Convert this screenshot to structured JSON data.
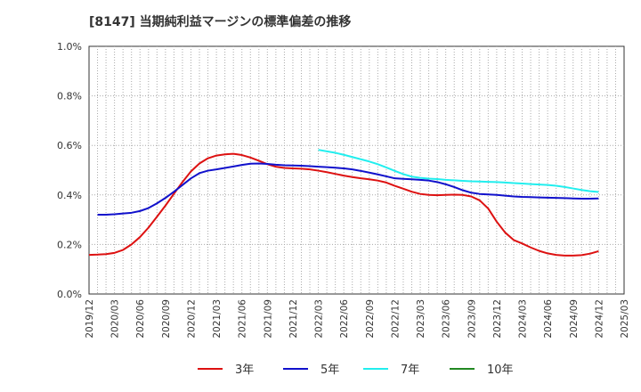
{
  "chart_data": {
    "type": "line",
    "title": "[8147]  当期純利益マージンの標準偏差の推移",
    "xlabel": "",
    "ylabel": "",
    "ylim": [
      0,
      0.01
    ],
    "yticks": [
      {
        "value": 0.0,
        "label": "0.0%"
      },
      {
        "value": 0.002,
        "label": "0.2%"
      },
      {
        "value": 0.004,
        "label": "0.4%"
      },
      {
        "value": 0.006,
        "label": "0.6%"
      },
      {
        "value": 0.008,
        "label": "0.8%"
      },
      {
        "value": 0.01,
        "label": "1.0%"
      }
    ],
    "xticks": [
      "2019/12",
      "2020/03",
      "2020/06",
      "2020/09",
      "2020/12",
      "2021/03",
      "2021/06",
      "2021/09",
      "2021/12",
      "2022/03",
      "2022/06",
      "2022/09",
      "2022/12",
      "2023/03",
      "2023/06",
      "2023/09",
      "2023/12",
      "2024/03",
      "2024/06",
      "2024/09",
      "2024/12",
      "2025/03"
    ],
    "grid": true,
    "legend_position": "bottom",
    "series": [
      {
        "name": "3年",
        "color": "#dd1111",
        "points": [
          [
            "2019/12",
            0.00158
          ],
          [
            "2020/01",
            0.00159
          ],
          [
            "2020/02",
            0.00161
          ],
          [
            "2020/03",
            0.00166
          ],
          [
            "2020/04",
            0.00178
          ],
          [
            "2020/05",
            0.002
          ],
          [
            "2020/06",
            0.0023
          ],
          [
            "2020/07",
            0.00268
          ],
          [
            "2020/08",
            0.00312
          ],
          [
            "2020/09",
            0.00357
          ],
          [
            "2020/10",
            0.00405
          ],
          [
            "2020/11",
            0.00452
          ],
          [
            "2020/12",
            0.00495
          ],
          [
            "2021/01",
            0.00527
          ],
          [
            "2021/02",
            0.00548
          ],
          [
            "2021/03",
            0.00559
          ],
          [
            "2021/04",
            0.00564
          ],
          [
            "2021/05",
            0.00566
          ],
          [
            "2021/06",
            0.00561
          ],
          [
            "2021/07",
            0.00551
          ],
          [
            "2021/08",
            0.00538
          ],
          [
            "2021/09",
            0.00524
          ],
          [
            "2021/10",
            0.00514
          ],
          [
            "2021/11",
            0.00509
          ],
          [
            "2021/12",
            0.00507
          ],
          [
            "2022/01",
            0.00506
          ],
          [
            "2022/02",
            0.00503
          ],
          [
            "2022/03",
            0.00498
          ],
          [
            "2022/04",
            0.00492
          ],
          [
            "2022/05",
            0.00485
          ],
          [
            "2022/06",
            0.00478
          ],
          [
            "2022/07",
            0.00472
          ],
          [
            "2022/08",
            0.00467
          ],
          [
            "2022/09",
            0.00463
          ],
          [
            "2022/10",
            0.00458
          ],
          [
            "2022/11",
            0.0045
          ],
          [
            "2022/12",
            0.00437
          ],
          [
            "2023/01",
            0.00425
          ],
          [
            "2023/02",
            0.00413
          ],
          [
            "2023/03",
            0.00404
          ],
          [
            "2023/04",
            0.004
          ],
          [
            "2023/05",
            0.00399
          ],
          [
            "2023/06",
            0.004
          ],
          [
            "2023/07",
            0.00401
          ],
          [
            "2023/08",
            0.004
          ],
          [
            "2023/09",
            0.00394
          ],
          [
            "2023/10",
            0.00378
          ],
          [
            "2023/11",
            0.00345
          ],
          [
            "2023/12",
            0.00292
          ],
          [
            "2024/01",
            0.00248
          ],
          [
            "2024/02",
            0.00218
          ],
          [
            "2024/03",
            0.00204
          ],
          [
            "2024/04",
            0.00188
          ],
          [
            "2024/05",
            0.00174
          ],
          [
            "2024/06",
            0.00164
          ],
          [
            "2024/07",
            0.00158
          ],
          [
            "2024/08",
            0.00155
          ],
          [
            "2024/09",
            0.00155
          ],
          [
            "2024/10",
            0.00157
          ],
          [
            "2024/11",
            0.00163
          ],
          [
            "2024/12",
            0.00173
          ]
        ]
      },
      {
        "name": "5年",
        "color": "#1111cc",
        "points": [
          [
            "2019/12",
            null
          ],
          [
            "2020/01",
            0.0032
          ],
          [
            "2020/02",
            0.0032
          ],
          [
            "2020/03",
            0.00322
          ],
          [
            "2020/04",
            0.00325
          ],
          [
            "2020/05",
            0.00328
          ],
          [
            "2020/06",
            0.00335
          ],
          [
            "2020/07",
            0.00347
          ],
          [
            "2020/08",
            0.00366
          ],
          [
            "2020/09",
            0.00388
          ],
          [
            "2020/10",
            0.00413
          ],
          [
            "2020/11",
            0.0044
          ],
          [
            "2020/12",
            0.00467
          ],
          [
            "2021/01",
            0.00488
          ],
          [
            "2021/02",
            0.00498
          ],
          [
            "2021/03",
            0.00503
          ],
          [
            "2021/04",
            0.00509
          ],
          [
            "2021/05",
            0.00515
          ],
          [
            "2021/06",
            0.00521
          ],
          [
            "2021/07",
            0.00526
          ],
          [
            "2021/08",
            0.00527
          ],
          [
            "2021/09",
            0.00525
          ],
          [
            "2021/10",
            0.00522
          ],
          [
            "2021/11",
            0.0052
          ],
          [
            "2021/12",
            0.00519
          ],
          [
            "2022/01",
            0.00518
          ],
          [
            "2022/02",
            0.00516
          ],
          [
            "2022/03",
            0.00514
          ],
          [
            "2022/04",
            0.00512
          ],
          [
            "2022/05",
            0.0051
          ],
          [
            "2022/06",
            0.00507
          ],
          [
            "2022/07",
            0.00503
          ],
          [
            "2022/08",
            0.00497
          ],
          [
            "2022/09",
            0.0049
          ],
          [
            "2022/10",
            0.00483
          ],
          [
            "2022/11",
            0.00475
          ],
          [
            "2022/12",
            0.00467
          ],
          [
            "2023/01",
            0.00465
          ],
          [
            "2023/02",
            0.00463
          ],
          [
            "2023/03",
            0.00461
          ],
          [
            "2023/04",
            0.00458
          ],
          [
            "2023/05",
            0.00452
          ],
          [
            "2023/06",
            0.00443
          ],
          [
            "2023/07",
            0.00432
          ],
          [
            "2023/08",
            0.00419
          ],
          [
            "2023/09",
            0.00409
          ],
          [
            "2023/10",
            0.00404
          ],
          [
            "2023/11",
            0.00402
          ],
          [
            "2023/12",
            0.004
          ],
          [
            "2024/01",
            0.00397
          ],
          [
            "2024/02",
            0.00394
          ],
          [
            "2024/03",
            0.00392
          ],
          [
            "2024/04",
            0.00391
          ],
          [
            "2024/05",
            0.0039
          ],
          [
            "2024/06",
            0.00389
          ],
          [
            "2024/07",
            0.00388
          ],
          [
            "2024/08",
            0.00387
          ],
          [
            "2024/09",
            0.00386
          ],
          [
            "2024/10",
            0.00385
          ],
          [
            "2024/11",
            0.00385
          ],
          [
            "2024/12",
            0.00386
          ]
        ]
      },
      {
        "name": "7年",
        "color": "#22eeee",
        "points": [
          [
            "2022/03",
            0.00582
          ],
          [
            "2022/04",
            0.00576
          ],
          [
            "2022/05",
            0.0057
          ],
          [
            "2022/06",
            0.00562
          ],
          [
            "2022/07",
            0.00553
          ],
          [
            "2022/08",
            0.00544
          ],
          [
            "2022/09",
            0.00535
          ],
          [
            "2022/10",
            0.00524
          ],
          [
            "2022/11",
            0.00511
          ],
          [
            "2022/12",
            0.00497
          ],
          [
            "2023/01",
            0.00484
          ],
          [
            "2023/02",
            0.00474
          ],
          [
            "2023/03",
            0.00469
          ],
          [
            "2023/04",
            0.00466
          ],
          [
            "2023/05",
            0.00464
          ],
          [
            "2023/06",
            0.00461
          ],
          [
            "2023/07",
            0.00459
          ],
          [
            "2023/08",
            0.00457
          ],
          [
            "2023/09",
            0.00455
          ],
          [
            "2023/10",
            0.00454
          ],
          [
            "2023/11",
            0.00453
          ],
          [
            "2023/12",
            0.00452
          ],
          [
            "2024/01",
            0.0045
          ],
          [
            "2024/02",
            0.00448
          ],
          [
            "2024/03",
            0.00446
          ],
          [
            "2024/04",
            0.00444
          ],
          [
            "2024/05",
            0.00442
          ],
          [
            "2024/06",
            0.0044
          ],
          [
            "2024/07",
            0.00437
          ],
          [
            "2024/08",
            0.00432
          ],
          [
            "2024/09",
            0.00426
          ],
          [
            "2024/10",
            0.0042
          ],
          [
            "2024/11",
            0.00415
          ],
          [
            "2024/12",
            0.00412
          ]
        ]
      },
      {
        "name": "10年",
        "color": "#228822",
        "points": []
      }
    ]
  }
}
